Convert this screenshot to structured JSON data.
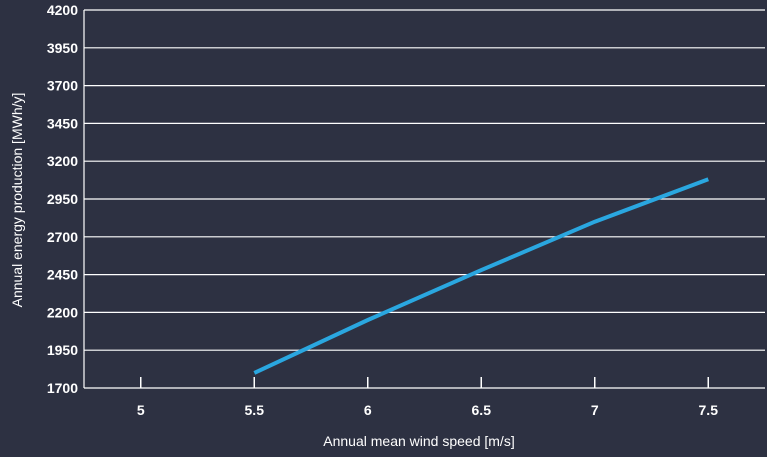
{
  "colors": {
    "background": "#2d3142",
    "grid": "#ffffff",
    "line": "#2aa7e0",
    "text": "#ffffff"
  },
  "chart_data": {
    "type": "line",
    "title": "",
    "xlabel": "Annual mean wind speed [m/s]",
    "ylabel": "Annual energy production [MWh/y]",
    "x_ticks": [
      "5",
      "5.5",
      "6",
      "6.5",
      "7",
      "7.5"
    ],
    "y_ticks": [
      "1700",
      "1950",
      "2200",
      "2450",
      "2700",
      "2950",
      "3200",
      "3450",
      "3700",
      "3950",
      "4200"
    ],
    "xlim": [
      4.75,
      7.75
    ],
    "ylim": [
      1700,
      4200
    ],
    "grid": true,
    "legend": "none",
    "series": [
      {
        "x": [
          5.5,
          6,
          6.5,
          7,
          7.5
        ],
        "y": [
          1800,
          2150,
          2480,
          2800,
          3080
        ]
      }
    ]
  }
}
